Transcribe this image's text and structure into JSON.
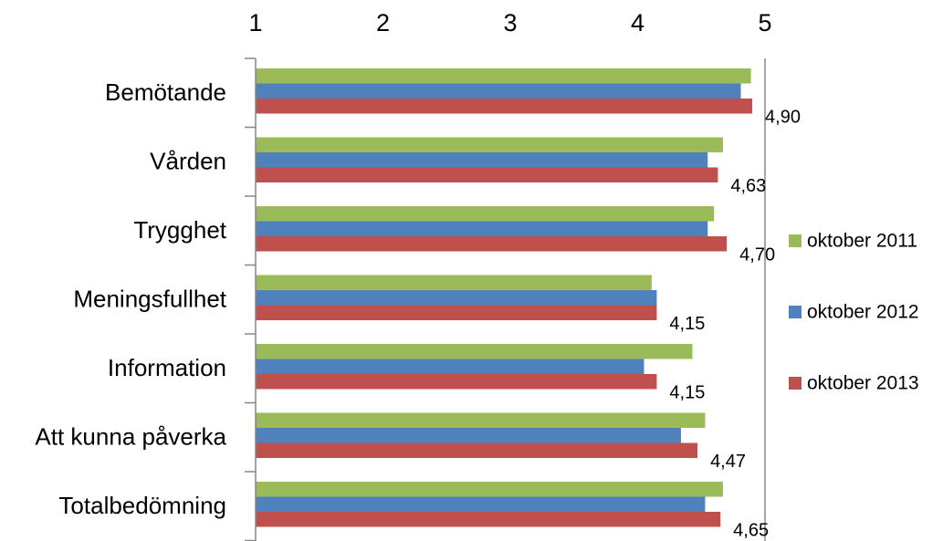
{
  "chart_data": {
    "type": "bar",
    "orientation": "horizontal",
    "categories": [
      "Bemötande",
      "Vården",
      "Trygghet",
      "Meningsfullhet",
      "Information",
      "Att kunna påverka",
      "Totalbedömning"
    ],
    "series": [
      {
        "name": "oktober 2011",
        "color": "#9BBB59",
        "values": [
          4.89,
          4.67,
          4.6,
          4.11,
          4.43,
          4.53,
          4.67
        ]
      },
      {
        "name": "oktober 2012",
        "color": "#4F81BD",
        "values": [
          4.81,
          4.55,
          4.55,
          4.15,
          4.05,
          4.34,
          4.53
        ]
      },
      {
        "name": "oktober 2013",
        "color": "#C0504D",
        "values": [
          4.9,
          4.63,
          4.7,
          4.15,
          4.15,
          4.47,
          4.65
        ]
      }
    ],
    "data_labels": [
      "4,90",
      "4,63",
      "4,70",
      "4,15",
      "4,15",
      "4,47",
      "4,65"
    ],
    "x_ticks": [
      "1",
      "2",
      "3",
      "4",
      "5"
    ],
    "xlim": [
      1,
      5
    ],
    "x_axis_position": "top",
    "grid": "vertical-at-max-only",
    "legend_position": "right"
  }
}
